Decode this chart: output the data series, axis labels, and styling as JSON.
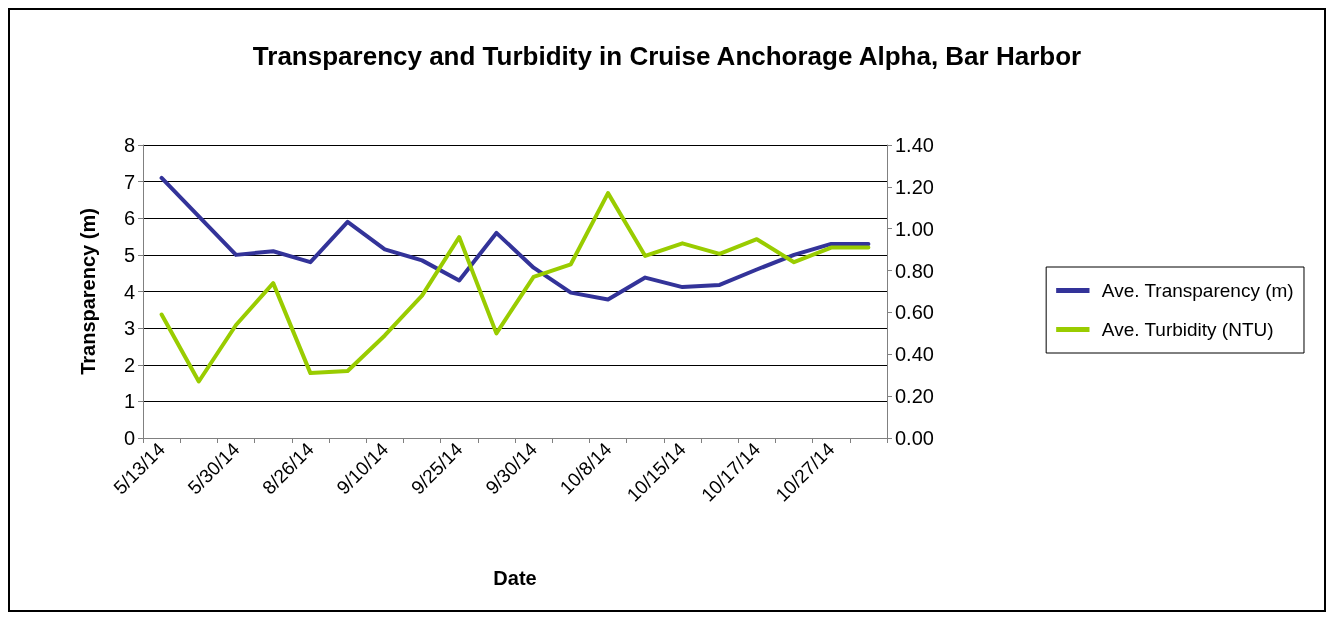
{
  "chart_data": {
    "type": "line",
    "title": "Transparency and Turbidity in Cruise Anchorage Alpha, Bar Harbor",
    "xlabel": "Date",
    "ylabel": "Transparency (m)",
    "categories": [
      "5/13/14",
      null,
      "5/30/14",
      null,
      "8/26/14",
      null,
      "9/10/14",
      null,
      "9/25/14",
      null,
      "9/30/14",
      null,
      "10/8/14",
      null,
      "10/15/14",
      null,
      "10/17/14",
      null,
      "10/27/14",
      null
    ],
    "series": [
      {
        "name": "Ave. Transparency (m)",
        "color": "#333399",
        "values": [
          7.1,
          6.05,
          5.0,
          5.1,
          4.8,
          5.9,
          5.15,
          4.85,
          4.3,
          5.6,
          4.65,
          3.97,
          3.78,
          4.38,
          4.12,
          4.18,
          4.6,
          5.0,
          5.3,
          5.3
        ]
      },
      {
        "name": "Ave. Turbidity (NTU)",
        "color": "#99cc00",
        "axis": "y2",
        "values": [
          0.59,
          0.27,
          0.54,
          0.74,
          0.31,
          0.32,
          0.49,
          0.68,
          0.96,
          0.5,
          0.77,
          0.83,
          1.17,
          0.87,
          0.93,
          0.88,
          0.95,
          0.84,
          0.91,
          0.91
        ]
      }
    ],
    "ylim": [
      0,
      8
    ],
    "yticks": [
      0,
      1,
      2,
      3,
      4,
      5,
      6,
      7,
      8
    ],
    "y2lim": [
      0,
      1.4
    ],
    "y2ticks": [
      {
        "value": 0,
        "label": "0.00"
      },
      {
        "value": 0.2,
        "label": "0.20"
      },
      {
        "value": 0.4,
        "label": "0.40"
      },
      {
        "value": 0.6,
        "label": "0.60"
      },
      {
        "value": 0.8,
        "label": "0.80"
      },
      {
        "value": 1.0,
        "label": "1.00"
      },
      {
        "value": 1.2,
        "label": "1.20"
      },
      {
        "value": 1.4,
        "label": "1.40"
      }
    ],
    "grid": "y",
    "legend": "right",
    "marker": "none",
    "line_style": "solid"
  }
}
